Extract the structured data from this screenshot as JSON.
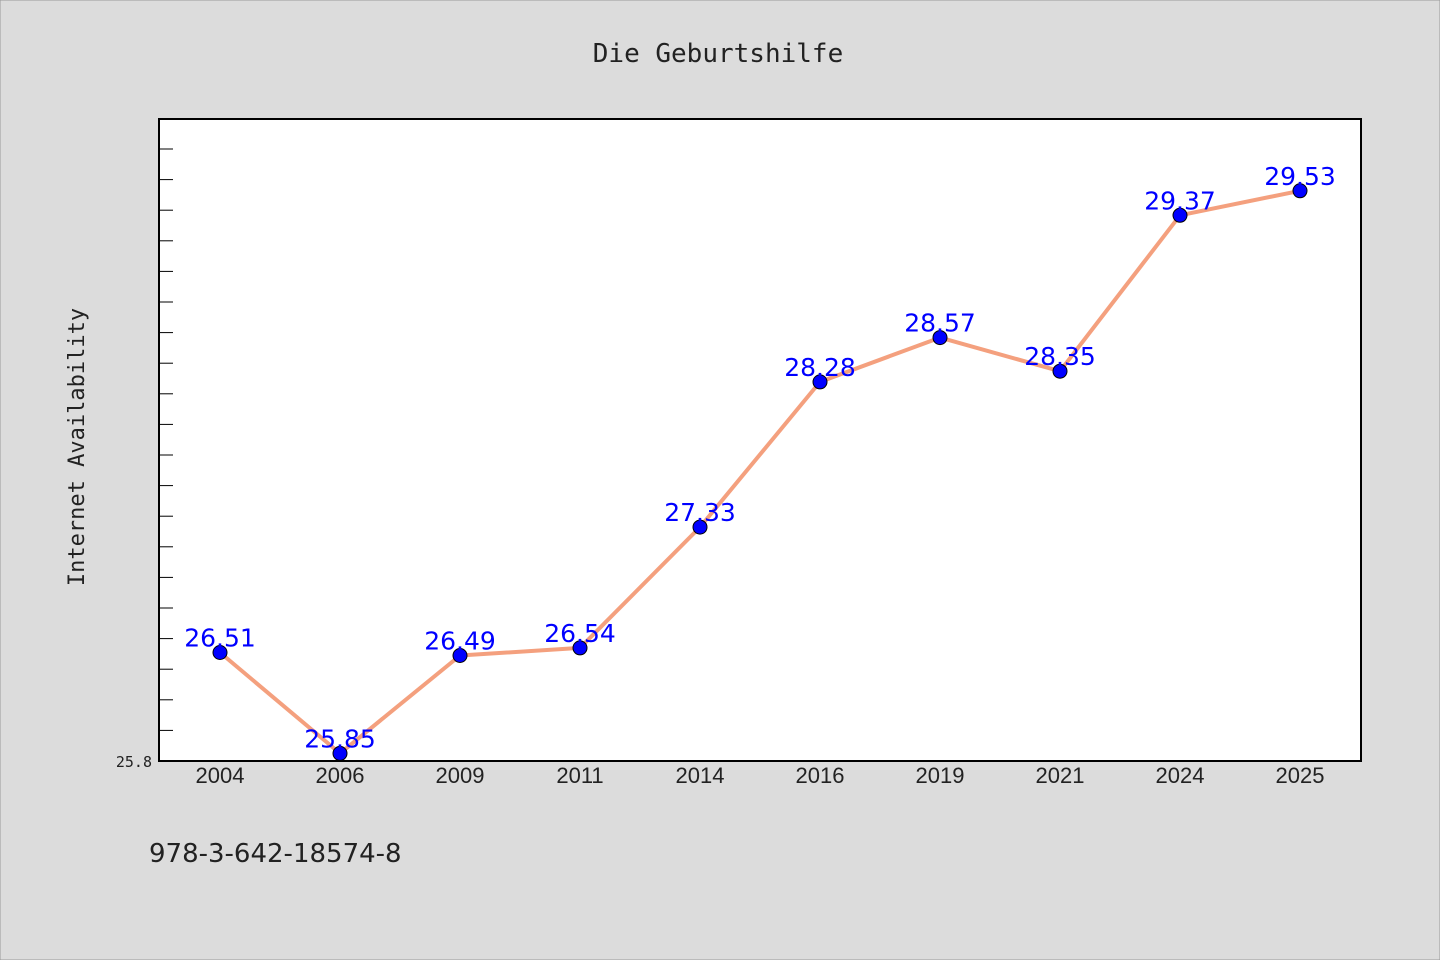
{
  "chart_data": {
    "type": "line",
    "title": "Die Geburtshilfe",
    "xlabel": "",
    "ylabel": "Internet Availability",
    "categories": [
      "2004",
      "2006",
      "2009",
      "2011",
      "2014",
      "2016",
      "2019",
      "2021",
      "2024",
      "2025"
    ],
    "series": [
      {
        "values": [
          26.51,
          25.85,
          26.49,
          26.54,
          27.33,
          28.28,
          28.57,
          28.35,
          29.37,
          29.53
        ],
        "labels": [
          "26.51",
          "25.85",
          "26.49",
          "26.54",
          "27.33",
          "28.28",
          "28.57",
          "28.35",
          "29.37",
          "29.53"
        ]
      }
    ],
    "ylim": [
      25.8,
      30.0
    ],
    "ytick_labels": [
      "25.8"
    ],
    "grid": false,
    "legend": "none",
    "colors": {
      "line": "#f4a07e",
      "marker": "#0000ff",
      "marker_edge": "#000000",
      "label": "#0000ff",
      "plot_background": "#ffffff",
      "figure_background": "#dcdcdc"
    }
  },
  "footer": {
    "text": "978-3-642-18574-8"
  }
}
